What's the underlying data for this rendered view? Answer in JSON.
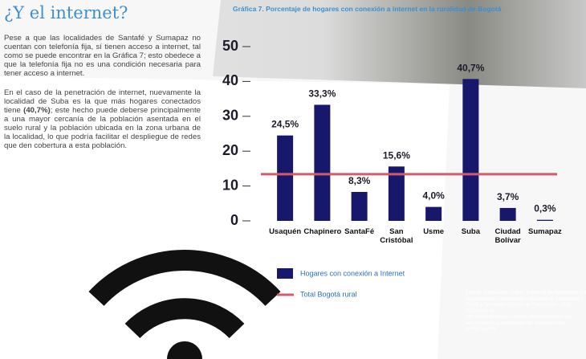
{
  "page": {
    "heading": "¿Y el internet?",
    "paragraph1": "Pese a que las localidades de Santafé y Sumapaz no cuentan con telefonía fija, sí tienen acceso a internet, tal como se puede encontrar en la Gráfica 7; esto obedece a que la telefonía fija no es una condición necesaria para tener acceso a internet.",
    "paragraph2": {
      "before": "En el caso de la penetración de internet, nuevamente la localidad de Suba es la que más hogares conectados tiene ",
      "bold": "(40,7%)",
      "after": "; este hecho puede deberse principalmente a una mayor cercanía de la población asentada en el suelo rural y la población ubicada en la zona urbana de la localidad, lo que podría facilitar el despliegue de redes que den cobertura a esta población."
    }
  },
  "chart_data": {
    "type": "bar",
    "title": "Gráfica 7. Porcentaje de hogares con conexión a internet en la ruralidad de Bogotá",
    "categories": [
      "Usaquén",
      "Chapinero",
      "SantaFé",
      "San Cristóbal",
      "Usme",
      "Suba",
      "Ciudad Bolívar",
      "Sumapaz"
    ],
    "series": [
      {
        "name": "Hogares con conexión a Internet",
        "color": "#17176b",
        "values": [
          24.5,
          33.3,
          8.3,
          15.6,
          4.0,
          40.7,
          3.7,
          0.3
        ],
        "value_labels": [
          "24,5%",
          "33,3%",
          "8,3%",
          "15,6%",
          "4,0%",
          "40,7%",
          "3,7%",
          "0,3%"
        ]
      }
    ],
    "reference_line": {
      "name": "Total Bogotá rural",
      "value": 13.4,
      "color": "#d65a6b"
    },
    "ylim": [
      0,
      50
    ],
    "yticks": [
      0,
      10,
      20,
      30,
      40,
      50
    ],
    "source": "Fuente: Elaboración propia. Encuesta Multipropósito 2017. Departamento Administrativo Nacional de Estadística – DANE y Secretaría Distrital de Planeación – SDP. Disponible en: http://www.dane.gov.co/index.php/estadisticas-por-tema/pobreza-y-condiciones-de-vida/encuesta-multiproposito"
  }
}
